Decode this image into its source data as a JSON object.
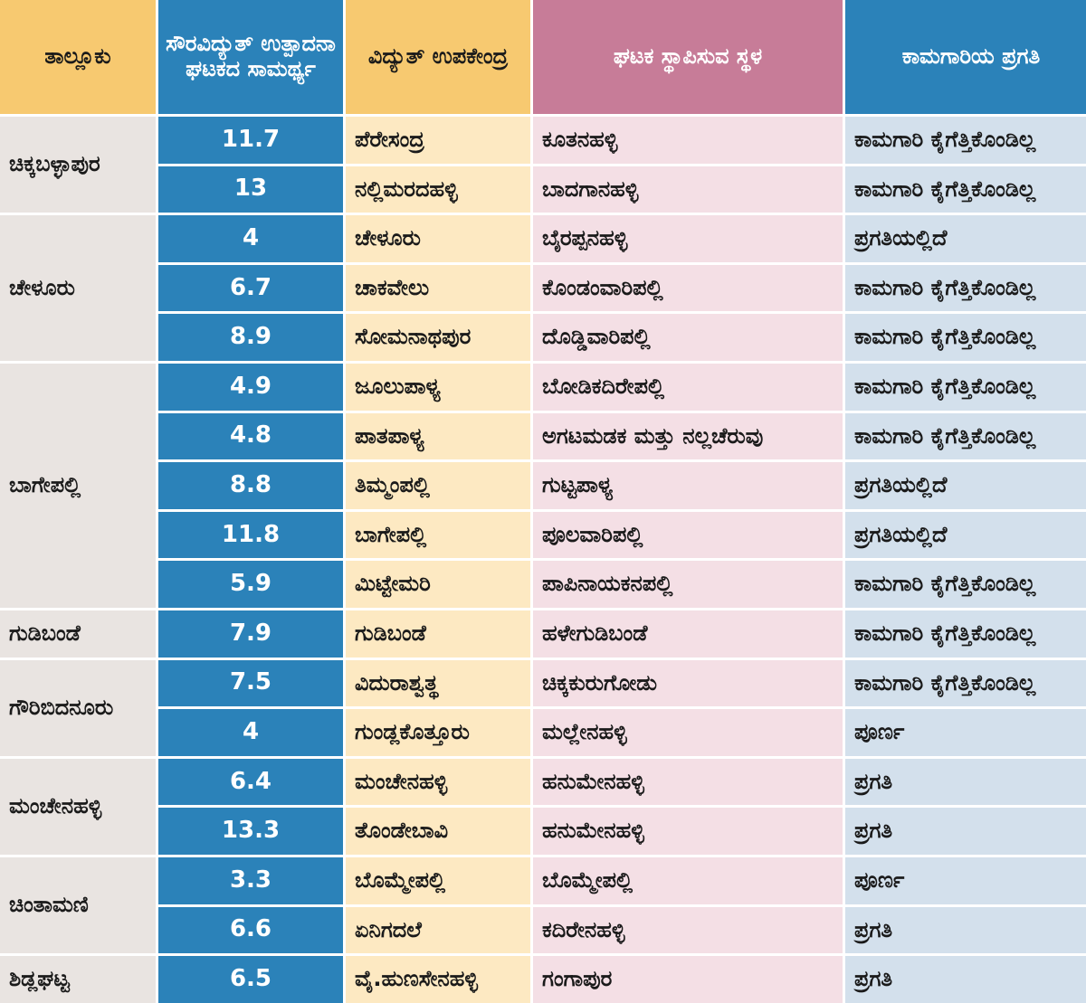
{
  "headers": {
    "taluk": "ತಾಲ್ಲೂಕು",
    "capacity": "ಸೌರವಿದ್ಯುತ್ ಉತ್ಪಾದನಾ ಘಟಕದ ಸಾಮರ್ಥ್ಯ",
    "substation": "ವಿದ್ಯುತ್ ಉಪಕೇಂದ್ರ",
    "site": "ಘಟಕ ಸ್ಥಾಪಿಸುವ ಸ್ಥಳ",
    "progress": "ಕಾಮಗಾರಿಯ ಪ್ರಗತಿ"
  },
  "taluks": [
    {
      "name": "ಚಿಕ್ಕಬಳ್ಳಾಪುರ",
      "span": 2
    },
    {
      "name": "ಚೇಳೂರು",
      "span": 3
    },
    {
      "name": "ಬಾಗೇಪಲ್ಲಿ",
      "span": 5
    },
    {
      "name": "ಗುಡಿಬಂಡೆ",
      "span": 1
    },
    {
      "name": "ಗೌರಿಬಿದನೂರು",
      "span": 2
    },
    {
      "name": "ಮಂಚೇನಹಳ್ಳಿ",
      "span": 2
    },
    {
      "name": "ಚಿಂತಾಮಣಿ",
      "span": 2
    },
    {
      "name": "ಶಿಡ್ಲಘಟ್ಟ",
      "span": 1
    }
  ],
  "rows": [
    {
      "capacity": "11.7",
      "substation": "ಪೆರೇಸಂದ್ರ",
      "site": "ಕೂತನಹಳ್ಳಿ",
      "progress": "ಕಾಮಗಾರಿ ಕೈಗೆತ್ತಿಕೊಂಡಿಲ್ಲ"
    },
    {
      "capacity": "13",
      "substation": "ನಲ್ಲಿಮರದಹಳ್ಳಿ",
      "site": "ಬಾದಗಾನಹಳ್ಳಿ",
      "progress": "ಕಾಮಗಾರಿ ಕೈಗೆತ್ತಿಕೊಂಡಿಲ್ಲ"
    },
    {
      "capacity": "4",
      "substation": "ಚೇಳೂರು",
      "site": "ಬೈರಪ್ಪನಹಳ್ಳಿ",
      "progress": "ಪ್ರಗತಿಯಲ್ಲಿದೆ"
    },
    {
      "capacity": "6.7",
      "substation": "ಚಾಕವೇಲು",
      "site": "ಕೊಂಡಂವಾರಿಪಲ್ಲಿ",
      "progress": "ಕಾಮಗಾರಿ ಕೈಗೆತ್ತಿಕೊಂಡಿಲ್ಲ"
    },
    {
      "capacity": "8.9",
      "substation": "ಸೋಮನಾಥಪುರ",
      "site": "ದೊಡ್ಡಿವಾರಿಪಲ್ಲಿ",
      "progress": "ಕಾಮಗಾರಿ ಕೈಗೆತ್ತಿಕೊಂಡಿಲ್ಲ"
    },
    {
      "capacity": "4.9",
      "substation": "ಜೂಲುಪಾಳ್ಯ",
      "site": "ಬೋಡಿಕದಿರೇಪಲ್ಲಿ",
      "progress": "ಕಾಮಗಾರಿ ಕೈಗೆತ್ತಿಕೊಂಡಿಲ್ಲ"
    },
    {
      "capacity": "4.8",
      "substation": "ಪಾತಪಾಳ್ಯ",
      "site": "ಅಗಟಮಡಕ ಮತ್ತು ನಲ್ಲಚೆರುವು",
      "progress": "ಕಾಮಗಾರಿ ಕೈಗೆತ್ತಿಕೊಂಡಿಲ್ಲ"
    },
    {
      "capacity": "8.8",
      "substation": "ತಿಮ್ಮಂಪಲ್ಲಿ",
      "site": "ಗುಟ್ಟಪಾಳ್ಯ",
      "progress": "ಪ್ರಗತಿಯಲ್ಲಿದೆ"
    },
    {
      "capacity": "11.8",
      "substation": "ಬಾಗೇಪಲ್ಲಿ",
      "site": "ಪೂಲವಾರಿಪಲ್ಲಿ",
      "progress": "ಪ್ರಗತಿಯಲ್ಲಿದೆ"
    },
    {
      "capacity": "5.9",
      "substation": "ಮಿಟ್ಟೇಮರಿ",
      "site": "ಪಾಪಿನಾಯಕನಪಲ್ಲಿ",
      "progress": "ಕಾಮಗಾರಿ ಕೈಗೆತ್ತಿಕೊಂಡಿಲ್ಲ"
    },
    {
      "capacity": "7.9",
      "substation": "ಗುಡಿಬಂಡೆ",
      "site": "ಹಳೇಗುಡಿಬಂಡೆ",
      "progress": "ಕಾಮಗಾರಿ ಕೈಗೆತ್ತಿಕೊಂಡಿಲ್ಲ"
    },
    {
      "capacity": "7.5",
      "substation": "ವಿದುರಾಶ್ವತ್ಥ",
      "site": "ಚಿಕ್ಕಕುರುಗೋಡು",
      "progress": "ಕಾಮಗಾರಿ ಕೈಗೆತ್ತಿಕೊಂಡಿಲ್ಲ"
    },
    {
      "capacity": "4",
      "substation": "ಗುಂಡ್ಲಕೊತ್ತೂರು",
      "site": "ಮಲ್ಲೇನಹಳ್ಳಿ",
      "progress": "ಪೂರ್ಣ"
    },
    {
      "capacity": "6.4",
      "substation": "ಮಂಚೇನಹಳ್ಳಿ",
      "site": "ಹನುಮೇನಹಳ್ಳಿ",
      "progress": "ಪ್ರಗತಿ"
    },
    {
      "capacity": "13.3",
      "substation": "ತೊಂಡೇಬಾವಿ",
      "site": "ಹನುಮೇನಹಳ್ಳಿ",
      "progress": "ಪ್ರಗತಿ"
    },
    {
      "capacity": "3.3",
      "substation": "ಬೊಮ್ಮೇಪಲ್ಲಿ",
      "site": "ಬೊಮ್ಮೇಪಲ್ಲಿ",
      "progress": "ಪೂರ್ಣ"
    },
    {
      "capacity": "6.6",
      "substation": "ಏನಿಗದಲೆ",
      "site": "ಕದಿರೇನಹಳ್ಳಿ",
      "progress": "ಪ್ರಗತಿ"
    },
    {
      "capacity": "6.5",
      "substation": "ವೈ.ಹುಣಸೇನಹಳ್ಳಿ",
      "site": "ಗಂಗಾಪುರ",
      "progress": "ಪ್ರಗತಿ"
    }
  ],
  "colors": {
    "header_blue": "#2b82b9",
    "header_orange": "#f7c970",
    "header_pink": "#c77c98",
    "taluk_bg": "#e9e4e1",
    "substation_bg": "#fde9c2",
    "site_bg": "#f4dfe5",
    "progress_bg": "#d3e0ec"
  }
}
